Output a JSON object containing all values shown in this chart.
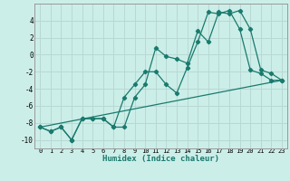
{
  "xlabel": "Humidex (Indice chaleur)",
  "bg_color": "#cceee8",
  "grid_color": "#b8d8d4",
  "line_color": "#1a7a6e",
  "xlim": [
    -0.5,
    23.5
  ],
  "ylim": [
    -11,
    6
  ],
  "yticks": [
    -10,
    -8,
    -6,
    -4,
    -2,
    0,
    2,
    4
  ],
  "xticks": [
    0,
    1,
    2,
    3,
    4,
    5,
    6,
    7,
    8,
    9,
    10,
    11,
    12,
    13,
    14,
    15,
    16,
    17,
    18,
    19,
    20,
    21,
    22,
    23
  ],
  "series1_x": [
    0,
    1,
    2,
    3,
    4,
    5,
    6,
    7,
    8,
    9,
    10,
    11,
    12,
    13,
    14,
    15,
    16,
    17,
    18,
    19,
    20,
    21,
    22,
    23
  ],
  "series1_y": [
    -8.5,
    -9.0,
    -8.5,
    -10.0,
    -7.5,
    -7.5,
    -7.5,
    -8.5,
    -8.5,
    -5.0,
    -3.5,
    0.8,
    -0.2,
    -0.5,
    -1.0,
    2.8,
    1.5,
    5.0,
    4.8,
    5.2,
    3.0,
    -1.8,
    -2.2,
    -3.0
  ],
  "series2_x": [
    0,
    1,
    2,
    3,
    4,
    5,
    6,
    7,
    8,
    9,
    10,
    11,
    12,
    13,
    14,
    15,
    16,
    17,
    18,
    19,
    20,
    21,
    22,
    23
  ],
  "series2_y": [
    -8.5,
    -9.0,
    -8.5,
    -10.0,
    -7.5,
    -7.5,
    -7.5,
    -8.5,
    -5.0,
    -3.5,
    -2.0,
    -2.0,
    -3.5,
    -4.5,
    -1.5,
    1.5,
    5.0,
    4.8,
    5.2,
    3.0,
    -1.8,
    -2.2,
    -3.0,
    -3.0
  ],
  "trend_x": [
    0,
    23
  ],
  "trend_y": [
    -8.5,
    -3.0
  ]
}
